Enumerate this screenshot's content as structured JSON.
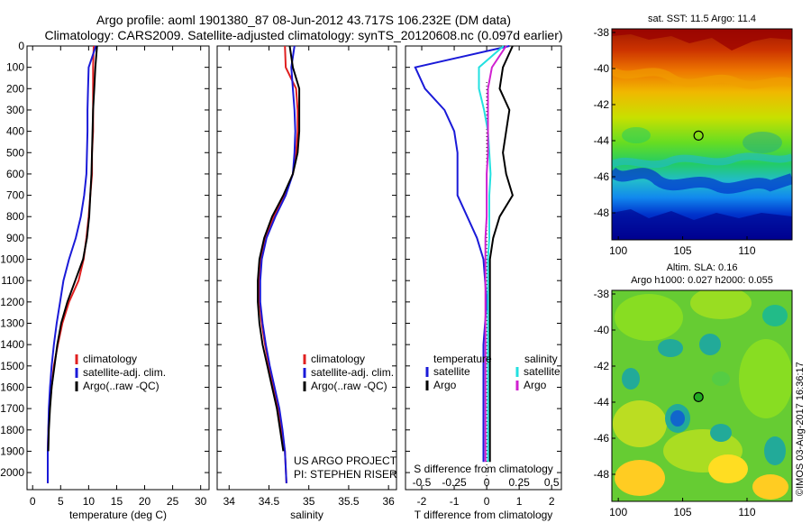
{
  "title": {
    "line1": "Argo profile: aoml 1901380_87 08-Jun-2012 43.717S 106.232E (DM data)",
    "line2": "Climatology: CARS2009. Satellite-adjusted climatology: synTS_20120608.nc (0.097d earlier)"
  },
  "credit": "©IMOS 03-Aug-2017 16:36:17",
  "colors": {
    "climatology": "#e02020",
    "satellite": "#1a1ad8",
    "argo": "#000000",
    "sat_salinity": "#22e0e0",
    "argo_salinity": "#d020d0"
  },
  "chart_data": [
    {
      "id": "temperature",
      "type": "line",
      "xlabel": "temperature (deg C)",
      "ylabel": "",
      "xlim": [
        -1,
        31.5
      ],
      "ylim": [
        2080,
        0
      ],
      "xticks": [
        0,
        5,
        10,
        15,
        20,
        25,
        30
      ],
      "xtick_labels": [
        "0",
        "5",
        "10",
        "15",
        "20",
        "25",
        "30"
      ],
      "yticks": [
        0,
        100,
        200,
        300,
        400,
        500,
        600,
        700,
        800,
        900,
        1000,
        1100,
        1200,
        1300,
        1400,
        1500,
        1600,
        1700,
        1800,
        1900,
        2000
      ],
      "ytick_labels": [
        "0",
        "100",
        "200",
        "300",
        "400",
        "500",
        "600",
        "700",
        "800",
        "900",
        "1000",
        "1100",
        "1200",
        "1300",
        "1400",
        "1500",
        "1600",
        "1700",
        "1800",
        "1900",
        "2000"
      ],
      "legend": [
        "climatology",
        "satellite-adj. clim.",
        "Argo(..raw -QC)"
      ],
      "legend_position": "center",
      "footer": [],
      "series": [
        {
          "name": "climatology",
          "color": "#e02020",
          "x": [
            10.9,
            10.8,
            10.8,
            10.8,
            10.8,
            10.6,
            10.6,
            10.3,
            10.0,
            9.6,
            9.1,
            8.2,
            6.5,
            5.3,
            4.5,
            3.8,
            3.4,
            3.0,
            2.8,
            2.7,
            2.7
          ],
          "y": [
            0,
            100,
            200,
            300,
            400,
            500,
            600,
            700,
            800,
            900,
            1000,
            1100,
            1200,
            1300,
            1400,
            1500,
            1600,
            1700,
            1800,
            1900,
            2050
          ]
        },
        {
          "name": "satellite-adj. clim.",
          "color": "#1a1ad8",
          "x": [
            11.3,
            10.0,
            9.9,
            9.8,
            9.8,
            9.7,
            9.6,
            9.2,
            8.6,
            7.7,
            6.5,
            5.5,
            4.9,
            4.3,
            3.8,
            3.4,
            3.1,
            2.9,
            2.8,
            2.7,
            2.7
          ],
          "y": [
            0,
            100,
            200,
            300,
            400,
            500,
            600,
            700,
            800,
            900,
            1000,
            1100,
            1200,
            1300,
            1400,
            1500,
            1600,
            1700,
            1800,
            1900,
            2050
          ]
        },
        {
          "name": "Argo(..raw -QC)",
          "color": "#000000",
          "x": [
            11.5,
            11.2,
            11.0,
            10.8,
            10.7,
            10.6,
            10.5,
            10.3,
            10.1,
            9.7,
            9.0,
            7.6,
            6.2,
            5.1,
            4.4,
            3.9,
            3.4,
            3.1,
            2.9,
            2.8
          ],
          "y": [
            0,
            100,
            200,
            300,
            400,
            500,
            600,
            700,
            800,
            900,
            1000,
            1100,
            1200,
            1300,
            1400,
            1500,
            1600,
            1700,
            1800,
            1900
          ]
        }
      ]
    },
    {
      "id": "salinity",
      "type": "line",
      "xlabel": "salinity",
      "ylabel": "",
      "xlim": [
        33.85,
        36.1
      ],
      "ylim": [
        2080,
        0
      ],
      "xticks": [
        34,
        34.5,
        35,
        35.5,
        36
      ],
      "xtick_labels": [
        "34",
        "34.5",
        "35",
        "35.5",
        "36"
      ],
      "yticks": [],
      "ytick_labels": [],
      "legend": [
        "climatology",
        "satellite-adj. clim.",
        "Argo(..raw -QC)"
      ],
      "legend_position": "center-right",
      "footer": [
        "US ARGO PROJECT",
        "PI: STEPHEN RISER"
      ],
      "series": [
        {
          "name": "climatology",
          "color": "#e02020",
          "x": [
            34.7,
            34.71,
            34.84,
            34.86,
            34.86,
            34.84,
            34.8,
            34.7,
            34.56,
            34.45,
            34.4,
            34.38,
            34.38,
            34.41,
            34.45,
            34.5,
            34.56,
            34.62,
            34.66,
            34.7,
            34.72
          ],
          "y": [
            0,
            100,
            200,
            300,
            400,
            500,
            600,
            700,
            800,
            900,
            1000,
            1100,
            1200,
            1300,
            1400,
            1500,
            1600,
            1700,
            1800,
            1900,
            2050
          ]
        },
        {
          "name": "satellite-adj. clim.",
          "color": "#1a1ad8",
          "x": [
            34.82,
            34.78,
            34.8,
            34.82,
            34.83,
            34.82,
            34.8,
            34.71,
            34.58,
            34.47,
            34.41,
            34.39,
            34.39,
            34.42,
            34.46,
            34.51,
            34.57,
            34.63,
            34.67,
            34.7,
            34.72
          ],
          "y": [
            0,
            100,
            200,
            300,
            400,
            500,
            600,
            700,
            800,
            900,
            1000,
            1100,
            1200,
            1300,
            1400,
            1500,
            1600,
            1700,
            1800,
            1900,
            2050
          ]
        },
        {
          "name": "Argo(..raw -QC)",
          "color": "#000000",
          "x": [
            34.76,
            34.8,
            34.88,
            34.88,
            34.88,
            34.86,
            34.8,
            34.68,
            34.54,
            34.44,
            34.38,
            34.36,
            34.36,
            34.38,
            34.42,
            34.48,
            34.54,
            34.6,
            34.64,
            34.68
          ],
          "y": [
            0,
            100,
            200,
            300,
            400,
            500,
            600,
            700,
            800,
            900,
            1000,
            1100,
            1200,
            1300,
            1400,
            1500,
            1600,
            1700,
            1800,
            1900
          ]
        }
      ]
    },
    {
      "id": "difference",
      "type": "line",
      "xlabel": "T difference from climatology",
      "x2label": "S difference from climatology",
      "xlim": [
        -2.5,
        2.3
      ],
      "x2lim": [
        -0.625,
        0.575
      ],
      "ylim": [
        2080,
        0
      ],
      "xticks": [
        -2,
        -1,
        0,
        1,
        2
      ],
      "xtick_labels": [
        "-2",
        "-1",
        "0",
        "1",
        "2"
      ],
      "x2ticks": [
        -0.5,
        -0.25,
        0,
        0.25,
        0.5
      ],
      "x2tick_labels": [
        "-0.5",
        "-0.25",
        "0",
        "0.25",
        "0.5"
      ],
      "yticks": [],
      "ytick_labels": [],
      "legend_headers": [
        "temperature",
        "salinity"
      ],
      "legend": [
        "satellite",
        "Argo",
        "satellite",
        "Argo"
      ],
      "legend_position": "bottom-center",
      "series": [
        {
          "name": "temperature satellite",
          "color": "#1a1ad8",
          "x": [
            0.7,
            -2.2,
            -1.9,
            -1.3,
            -1.0,
            -0.9,
            -0.9,
            -0.9,
            -0.6,
            -0.3,
            -0.1,
            0,
            -0.1,
            -0.1,
            -0.1,
            -0.1,
            -0.1
          ],
          "y": [
            0,
            100,
            200,
            300,
            400,
            500,
            600,
            700,
            800,
            900,
            1000,
            1200,
            1400,
            1500,
            1600,
            1800,
            1950
          ]
        },
        {
          "name": "temperature Argo",
          "color": "#000000",
          "x": [
            0.8,
            0.5,
            0.4,
            0.7,
            0.6,
            0.5,
            0.6,
            0.8,
            0.4,
            0.2,
            0.1,
            0.1,
            0.1,
            0.1,
            0.1,
            0.1,
            0.1
          ],
          "y": [
            0,
            100,
            200,
            300,
            400,
            500,
            600,
            700,
            800,
            900,
            1000,
            1200,
            1400,
            1500,
            1600,
            1800,
            1950
          ]
        },
        {
          "name": "salinity satellite",
          "color": "#22e0e0",
          "x": [
            0.13,
            -0.06,
            -0.06,
            -0.02,
            0.01,
            0.02,
            0.03,
            0.02,
            0.02,
            0.02,
            0.01,
            0.01,
            0.01,
            0.01,
            0.01,
            0.01,
            0.01
          ],
          "y": [
            0,
            100,
            200,
            300,
            400,
            500,
            600,
            700,
            800,
            900,
            1000,
            1200,
            1400,
            1500,
            1600,
            1800,
            1950
          ]
        },
        {
          "name": "salinity Argo",
          "color": "#d020d0",
          "x": [
            0.15,
            0.04,
            0.01,
            0.01,
            0.01,
            0.01,
            0.0,
            0.0,
            0.0,
            -0.01,
            -0.01,
            -0.01,
            -0.01,
            -0.01,
            -0.01,
            -0.01,
            -0.01
          ],
          "y": [
            0,
            100,
            200,
            300,
            400,
            500,
            600,
            700,
            800,
            900,
            1000,
            1200,
            1400,
            1500,
            1600,
            1800,
            1950
          ]
        }
      ]
    },
    {
      "id": "sst_map",
      "type": "heatmap",
      "title": "sat. SST: 11.5 Argo: 11.4",
      "xlim": [
        99.5,
        113.5
      ],
      "ylim": [
        -49.5,
        -37.8
      ],
      "xticks": [
        100,
        105,
        110
      ],
      "xtick_labels": [
        "100",
        "105",
        "110"
      ],
      "yticks": [
        -38,
        -40,
        -42,
        -44,
        -46,
        -48
      ],
      "ytick_labels": [
        "-38",
        "-40",
        "-42",
        "-44",
        "-46",
        "-48"
      ],
      "marker": {
        "lon": 106.232,
        "lat": -43.717,
        "fill": "none"
      }
    },
    {
      "id": "sla_map",
      "type": "heatmap",
      "title": "Altim. SLA: 0.16",
      "subtitle": "Argo h1000: 0.027 h2000: 0.055",
      "xlim": [
        99.5,
        113.5
      ],
      "ylim": [
        -49.5,
        -37.8
      ],
      "xticks": [
        100,
        105,
        110
      ],
      "xtick_labels": [
        "100",
        "105",
        "110"
      ],
      "yticks": [
        -38,
        -40,
        -42,
        -44,
        -46,
        -48
      ],
      "ytick_labels": [
        "-38",
        "-40",
        "-42",
        "-44",
        "-46",
        "-48"
      ],
      "marker": {
        "lon": 106.232,
        "lat": -43.717,
        "fill": "#22aa22"
      }
    }
  ]
}
